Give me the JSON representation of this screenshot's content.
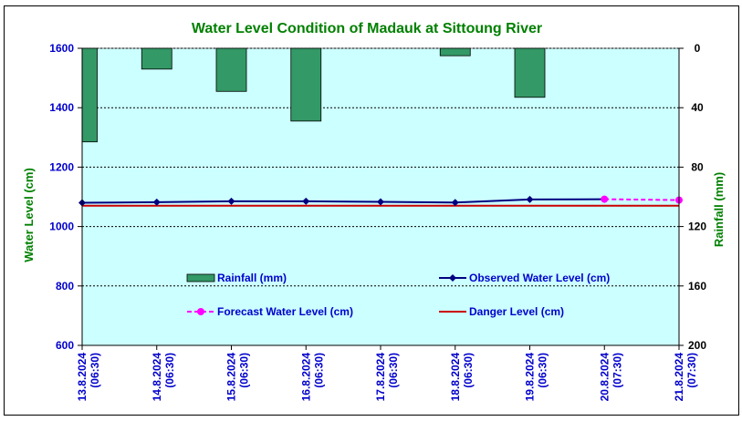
{
  "chart_data": {
    "type": "bar+line",
    "title": "Water Level Condition of Madauk at Sittoung River",
    "ylabel": "Water Level (cm)",
    "y2label": "Rainfall (mm)",
    "ylim": [
      600,
      1600
    ],
    "yticks": [
      600,
      800,
      1000,
      1200,
      1400,
      1600
    ],
    "y2lim": [
      0,
      200
    ],
    "y2ticks": [
      0,
      40,
      80,
      120,
      160,
      200
    ],
    "y2_inverted": true,
    "categories": [
      [
        "13.8.2024",
        "(06:30)"
      ],
      [
        "14.8.2024",
        "(06:30)"
      ],
      [
        "15.8.2024",
        "(06:30)"
      ],
      [
        "16.8.2024",
        "(06:30)"
      ],
      [
        "17.8.2024",
        "(06:30)"
      ],
      [
        "18.8.2024",
        "(06:30)"
      ],
      [
        "19.8.2024",
        "(06:30)"
      ],
      [
        "20.8.2024",
        "(07:30)"
      ],
      [
        "21.8.2024",
        "(07:30)"
      ]
    ],
    "rainfall": [
      63,
      14,
      29,
      49,
      0,
      5,
      33,
      0,
      0
    ],
    "observed": [
      1080,
      1082,
      1085,
      1085,
      1083,
      1081,
      1091,
      1092
    ],
    "forecast_x_index": [
      7,
      8
    ],
    "forecast": [
      1092,
      1089
    ],
    "danger": 1070,
    "legend": {
      "rainfall": "Rainfall (mm)",
      "observed": "Observed Water Level (cm)",
      "forecast": "Forecast Water Level (cm)",
      "danger": "Danger Level (cm)"
    },
    "colors": {
      "plot_bg": "#ccffff",
      "rainfall": "#339966",
      "observed": "#000080",
      "forecast": "#ff00ff",
      "danger": "#cc0000",
      "title": "#008000",
      "left_axis": "#0000cc",
      "right_axis": "#008000"
    },
    "grid": "dotted-horizontal"
  }
}
